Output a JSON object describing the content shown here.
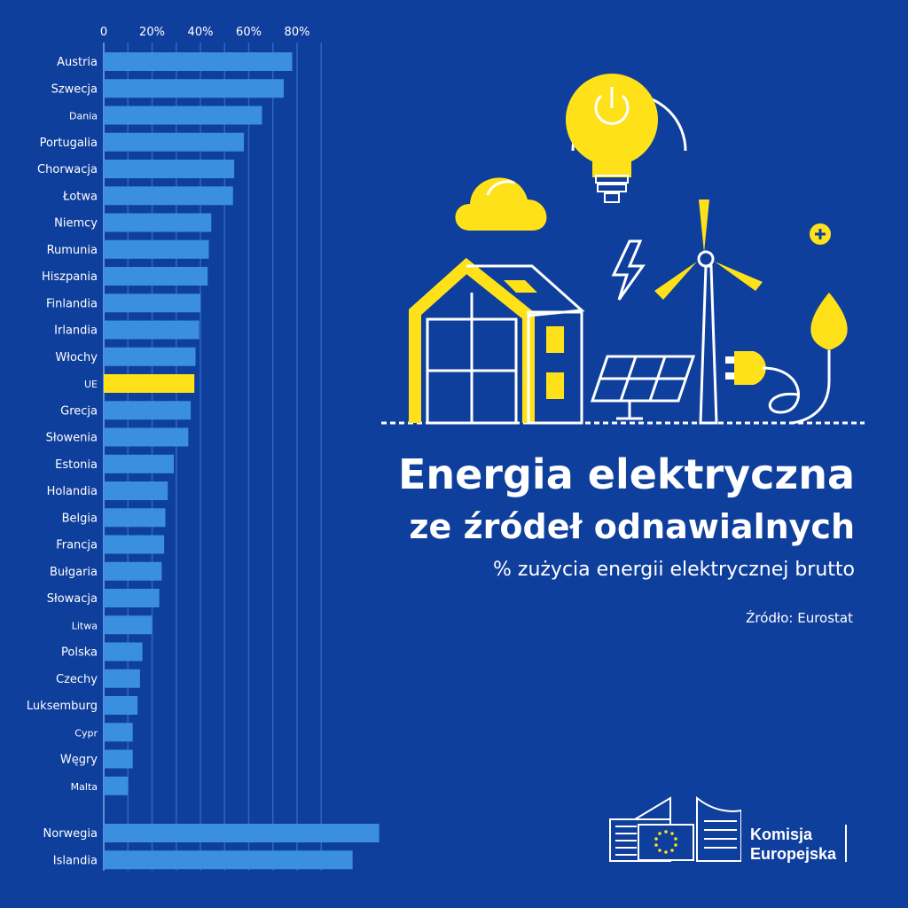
{
  "title_line1": "Energia elektryczna",
  "title_line2": "ze źródeł odnawialnych",
  "subtitle": "% zużycia energii elektrycznej brutto",
  "source": "Źródło: Eurostat",
  "logo": {
    "line1": "Komisja",
    "line2": "Europejska"
  },
  "colors": {
    "background": "#0f3f9c",
    "bar": "#3a8fde",
    "highlight": "#ffe11a",
    "grid": "#2d66c4"
  },
  "chart_data": {
    "type": "bar",
    "orientation": "horizontal",
    "categories": [
      "Austria",
      "Szwecja",
      "Dania",
      "Portugalia",
      "Chorwacja",
      "Łotwa",
      "Niemcy",
      "Rumunia",
      "Hiszpania",
      "Finlandia",
      "Irlandia",
      "Włochy",
      "UE",
      "Grecja",
      "Słowenia",
      "Estonia",
      "Holandia",
      "Belgia",
      "Francja",
      "Bułgaria",
      "Słowacja",
      "Litwa",
      "Polska",
      "Czechy",
      "Luksemburg",
      "Cypr",
      "Węgry",
      "Malta"
    ],
    "values": [
      78,
      74.5,
      65.5,
      58,
      54,
      53.5,
      44.5,
      43.5,
      43,
      40,
      39.5,
      38,
      37.5,
      36,
      35,
      29,
      26.5,
      25.5,
      25,
      24,
      23,
      20,
      16,
      15,
      14,
      12,
      12,
      10
    ],
    "highlight": "UE",
    "extra_categories": [
      "Norwegia",
      "Islandia"
    ],
    "extra_values": [
      114,
      103
    ],
    "xticks": [
      "0",
      "20%",
      "40%",
      "60%",
      "80%"
    ],
    "xlim": [
      0,
      90
    ],
    "grid": true
  }
}
